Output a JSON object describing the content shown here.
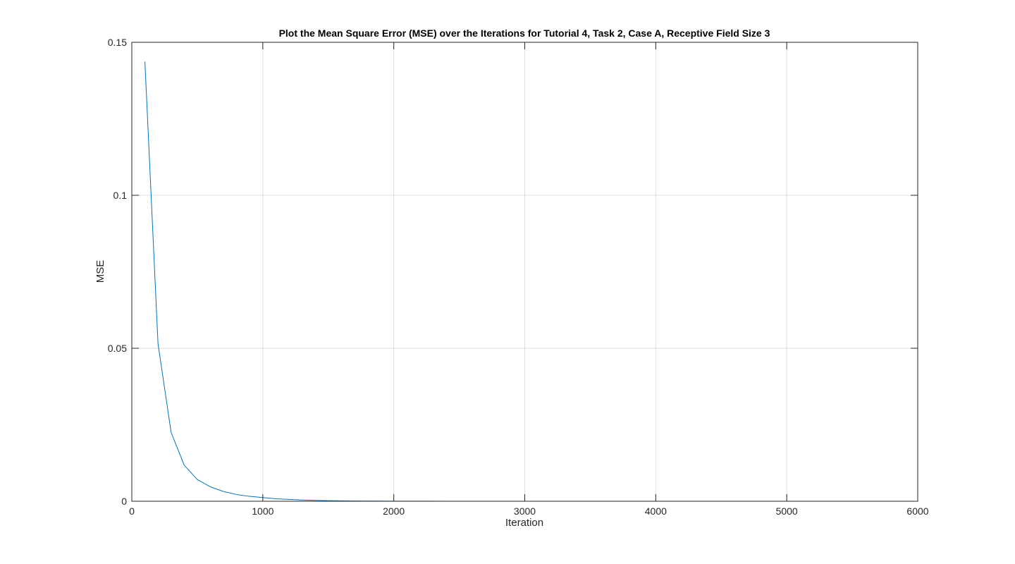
{
  "chart_data": {
    "type": "line",
    "title": "Plot the Mean Square Error (MSE) over the Iterations for Tutorial 4, Task 2, Case A, Receptive Field Size 3",
    "xlabel": "Iteration",
    "ylabel": "MSE",
    "xlim": [
      0,
      6000
    ],
    "ylim": [
      0,
      0.15
    ],
    "xticks": [
      0,
      1000,
      2000,
      3000,
      4000,
      5000,
      6000
    ],
    "xtick_labels": [
      "0",
      "1000",
      "2000",
      "3000",
      "4000",
      "5000",
      "6000"
    ],
    "yticks": [
      0,
      0.05,
      0.1,
      0.15
    ],
    "ytick_labels": [
      "0",
      "0.05",
      "0.1",
      "0.15"
    ],
    "grid": true,
    "box": true,
    "colors": {
      "line": "#0072BD",
      "grid": "#dcdcdc",
      "axis": "#262626"
    },
    "series": [
      {
        "color": "#0072BD",
        "x": [
          100,
          200,
          300,
          400,
          500,
          600,
          700,
          800,
          900,
          1000,
          1100,
          1200,
          1300,
          1400,
          1500,
          1600,
          1700,
          1800,
          1900,
          2000,
          2100,
          2200,
          2300,
          2400,
          2500,
          2600,
          2700,
          2800,
          2900,
          3000,
          3100,
          3200,
          3300,
          3400,
          3500,
          3600,
          3700,
          3800,
          3900,
          4000,
          4100,
          4200,
          4300,
          4400,
          4500,
          4600,
          4700,
          4800,
          4900,
          5000,
          5100,
          5200,
          5300
        ],
        "y": [
          0.1437,
          0.0515,
          0.0225,
          0.0118,
          0.0071,
          0.0047,
          0.0032,
          0.0022,
          0.0016,
          0.0012,
          0.0008,
          0.0006,
          0.0004,
          0.0003,
          0.0002,
          0.00015,
          0.0001,
          7e-05,
          5e-05,
          4e-05,
          3e-05,
          2e-05,
          1.5e-05,
          1e-05,
          8e-06,
          6e-06,
          5e-06,
          4e-06,
          3e-06,
          2.5e-06,
          2e-06,
          1.6e-06,
          1.3e-06,
          1e-06,
          8e-07,
          6e-07,
          5e-07,
          4e-07,
          3e-07,
          2.5e-07,
          2e-07,
          1.6e-07,
          1.3e-07,
          1e-07,
          8e-08,
          6e-08,
          5e-08,
          4e-08,
          3e-08,
          2.5e-08,
          2e-08,
          1.6e-08,
          1.3e-08
        ]
      }
    ]
  }
}
